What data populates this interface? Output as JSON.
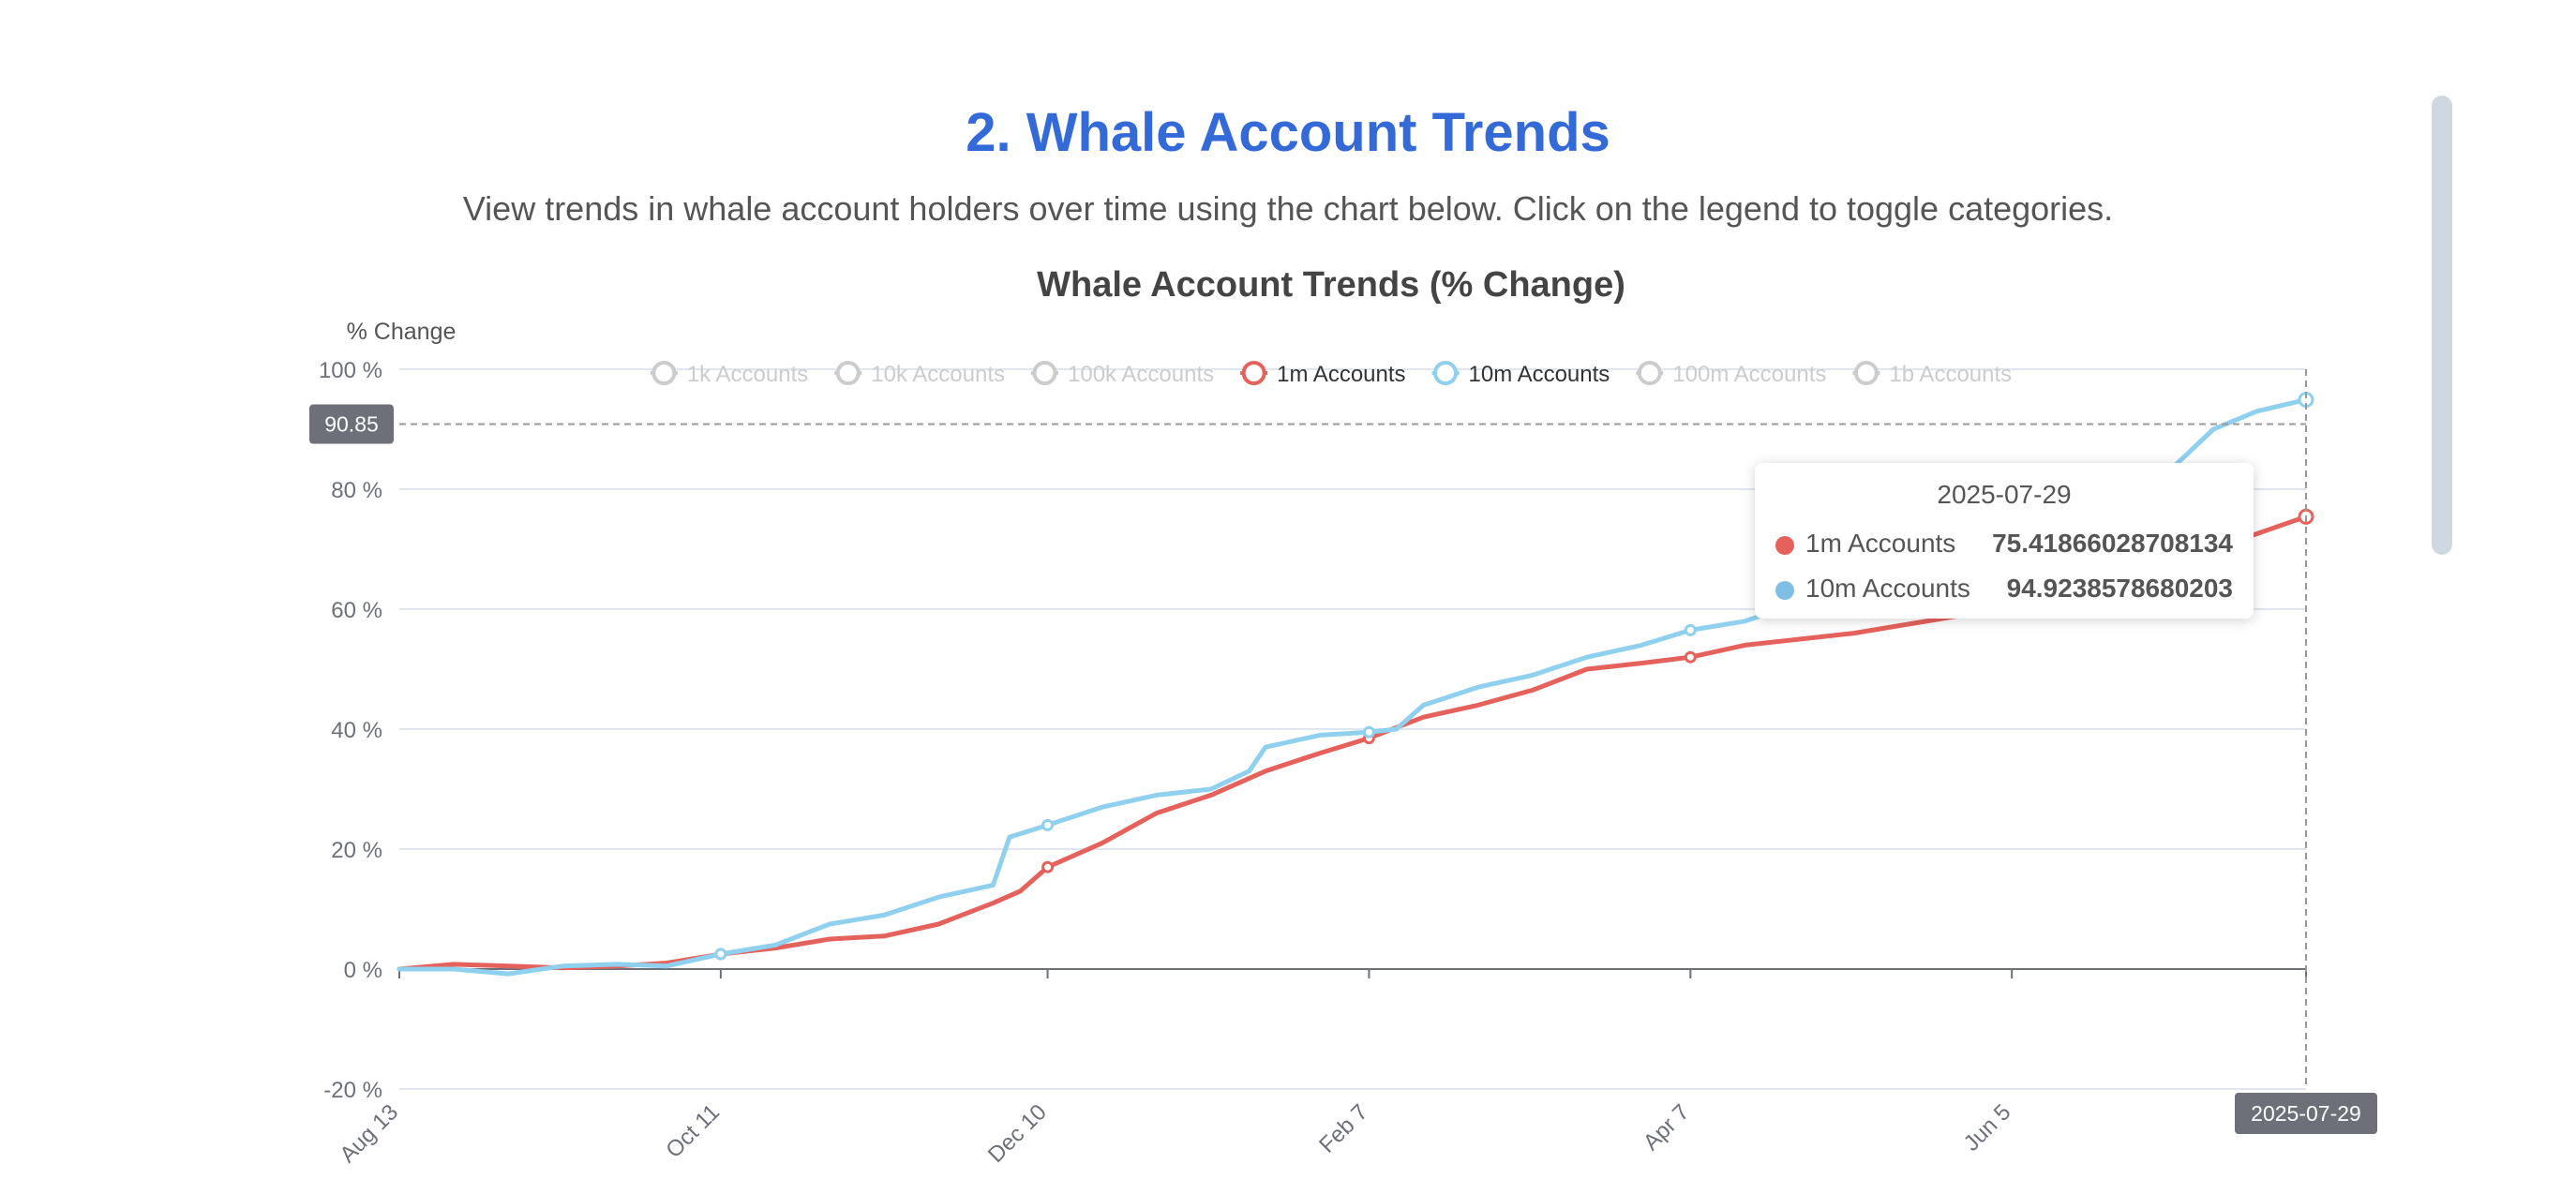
{
  "header": {
    "title": "2. Whale Account Trends",
    "subtitle": "View trends in whale account holders over time using the chart below. Click on the legend to toggle categories."
  },
  "colors": {
    "title": "#3469d8",
    "series_1m": "#e5625c",
    "series_10m": "#8fd0ef",
    "disabled": "#cccccc",
    "axis_pointer_label_bg": "#6e7079"
  },
  "chart_data": {
    "type": "line",
    "title": "Whale Account Trends (% Change)",
    "ylabel": "% Change",
    "xlabel": "",
    "ylim": [
      -20,
      100
    ],
    "y_ticks": [
      -20,
      0,
      20,
      40,
      60,
      80,
      100
    ],
    "y_tick_labels": [
      "-20 %",
      "0 %",
      "20 %",
      "40 %",
      "60 %",
      "80 %",
      "100 %"
    ],
    "x_range": [
      "2024-08-13",
      "2025-07-29"
    ],
    "x_ticks": [
      {
        "date": "2024-08-13",
        "label": "Aug 13"
      },
      {
        "date": "2024-10-11",
        "label": "Oct 11"
      },
      {
        "date": "2024-12-10",
        "label": "Dec 10"
      },
      {
        "date": "2025-02-07",
        "label": "Feb 7"
      },
      {
        "date": "2025-04-07",
        "label": "Apr 7"
      },
      {
        "date": "2025-06-05",
        "label": "Jun 5"
      }
    ],
    "grid": true,
    "legend": [
      {
        "name": "1k Accounts",
        "active": false
      },
      {
        "name": "10k Accounts",
        "active": false
      },
      {
        "name": "100k Accounts",
        "active": false
      },
      {
        "name": "1m Accounts",
        "active": true
      },
      {
        "name": "10m Accounts",
        "active": true
      },
      {
        "name": "100m Accounts",
        "active": false
      },
      {
        "name": "1b Accounts",
        "active": false
      }
    ],
    "legend_position": "top",
    "axis_pointer": {
      "x_label": "2025-07-29",
      "y_label": "90.85",
      "y_value": 90.85
    },
    "series": [
      {
        "name": "1m Accounts",
        "x": [
          "2024-08-13",
          "2024-08-23",
          "2024-09-02",
          "2024-09-12",
          "2024-09-22",
          "2024-10-01",
          "2024-10-11",
          "2024-10-21",
          "2024-10-31",
          "2024-11-10",
          "2024-11-20",
          "2024-11-30",
          "2024-12-05",
          "2024-12-10",
          "2024-12-20",
          "2024-12-30",
          "2025-01-09",
          "2025-01-19",
          "2025-01-29",
          "2025-02-07",
          "2025-02-17",
          "2025-02-27",
          "2025-03-09",
          "2025-03-19",
          "2025-03-29",
          "2025-04-07",
          "2025-04-17",
          "2025-04-27",
          "2025-05-07",
          "2025-05-17",
          "2025-05-27",
          "2025-06-05",
          "2025-06-15",
          "2025-06-25",
          "2025-07-05",
          "2025-07-15",
          "2025-07-29"
        ],
        "values": [
          0,
          0.8,
          0.5,
          0.2,
          0.5,
          1,
          2.5,
          3.5,
          5,
          5.5,
          7.5,
          11,
          13,
          17,
          21,
          26,
          29,
          33,
          36,
          38.5,
          42,
          44,
          46.5,
          50,
          51,
          52,
          54,
          55,
          56,
          57.5,
          59,
          61,
          63,
          65,
          68,
          71,
          75.42
        ]
      },
      {
        "name": "10m Accounts",
        "x": [
          "2024-08-13",
          "2024-08-23",
          "2024-09-02",
          "2024-09-12",
          "2024-09-22",
          "2024-10-01",
          "2024-10-11",
          "2024-10-21",
          "2024-10-31",
          "2024-11-10",
          "2024-11-20",
          "2024-11-30",
          "2024-12-03",
          "2024-12-10",
          "2024-12-20",
          "2024-12-30",
          "2025-01-09",
          "2025-01-16",
          "2025-01-19",
          "2025-01-29",
          "2025-02-07",
          "2025-02-12",
          "2025-02-17",
          "2025-02-27",
          "2025-03-09",
          "2025-03-19",
          "2025-03-29",
          "2025-04-07",
          "2025-04-17",
          "2025-04-27",
          "2025-05-07",
          "2025-05-17",
          "2025-05-27",
          "2025-06-05",
          "2025-06-15",
          "2025-06-25",
          "2025-07-05",
          "2025-07-12",
          "2025-07-20",
          "2025-07-29"
        ],
        "values": [
          0,
          0,
          -0.8,
          0.5,
          0.8,
          0.5,
          2.5,
          4,
          7.5,
          9,
          12,
          14,
          22,
          24,
          27,
          29,
          30,
          33,
          37,
          39,
          39.5,
          40,
          44,
          47,
          49,
          52,
          54,
          56.5,
          58,
          61,
          63,
          66,
          69,
          72,
          76,
          80,
          84,
          90,
          93,
          94.92
        ]
      }
    ],
    "tooltip": {
      "date": "2025-07-29",
      "rows": [
        {
          "name": "1m Accounts",
          "value": "75.41866028708134"
        },
        {
          "name": "10m Accounts",
          "value": "94.9238578680203"
        }
      ]
    }
  }
}
